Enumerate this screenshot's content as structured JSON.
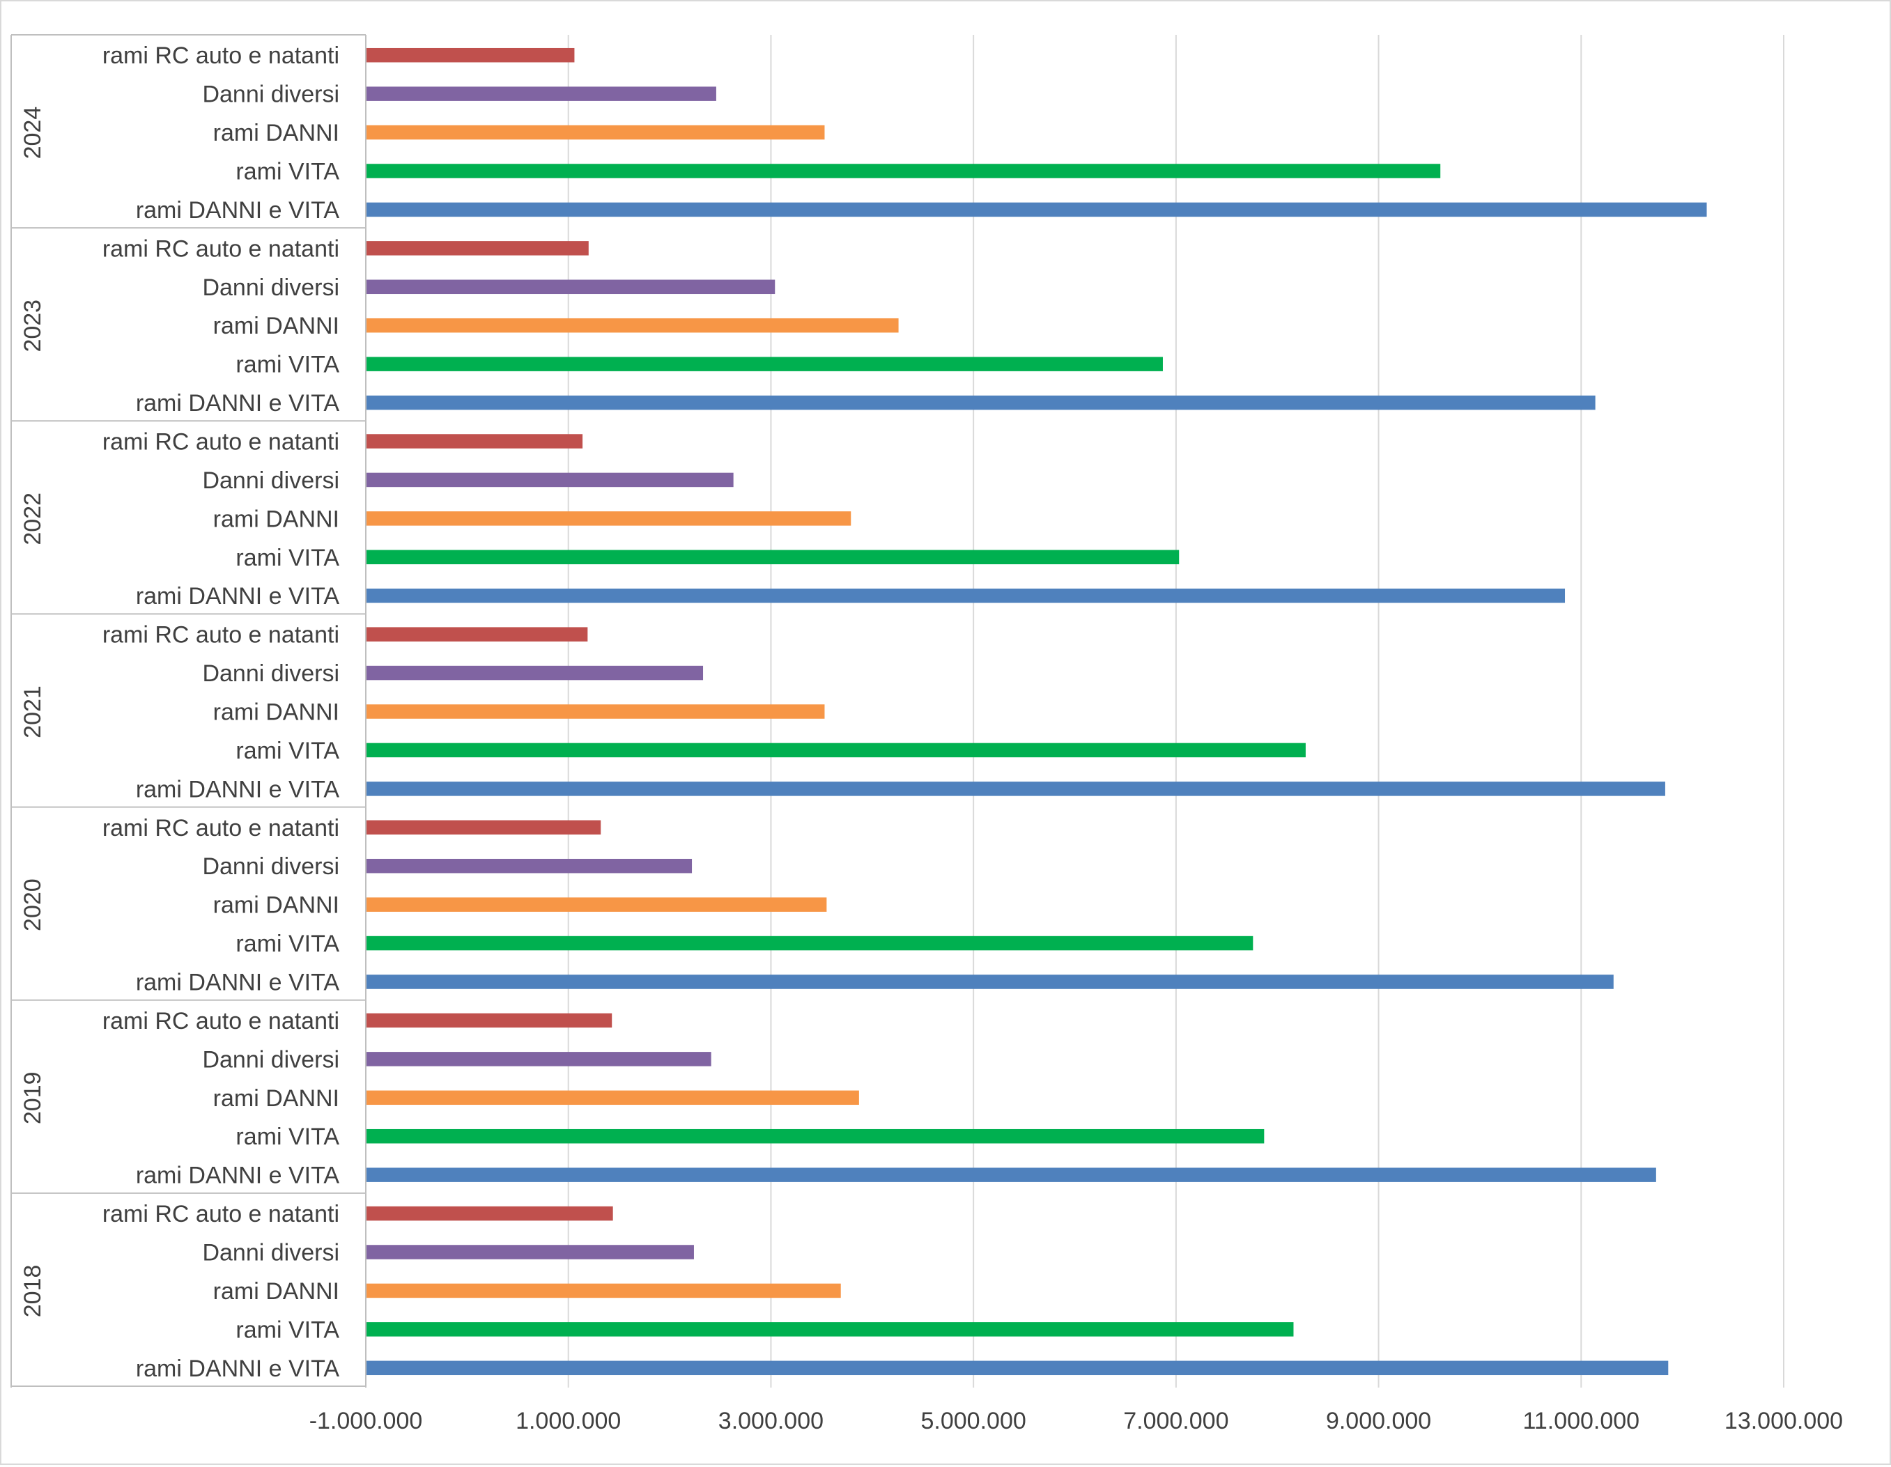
{
  "chart_data": {
    "type": "bar",
    "orientation": "horizontal",
    "title": "",
    "xlabel": "",
    "ylabel": "",
    "xlim": [
      -1000000,
      13000000
    ],
    "x_ticks": [
      -1000000,
      1000000,
      3000000,
      5000000,
      7000000,
      9000000,
      11000000,
      13000000
    ],
    "x_tick_labels": [
      "-1.000.000",
      "1.000.000",
      "3.000.000",
      "5.000.000",
      "7.000.000",
      "9.000.000",
      "11.000.000",
      "13.000.000"
    ],
    "grid": "vertical",
    "legend": "none",
    "colors": {
      "rami RC auto e natanti": "#c0504d",
      "Danni diversi": "#8064a2",
      "rami DANNI": "#f79646",
      "rami VITA": "#00b050",
      "rami DANNI e VITA": "#4f81bd"
    },
    "groups": [
      {
        "year": "2024",
        "bars": [
          {
            "label": "rami RC auto e natanti",
            "value": 1060000
          },
          {
            "label": "Danni diversi",
            "value": 2460000
          },
          {
            "label": "rami DANNI",
            "value": 3530000
          },
          {
            "label": "rami VITA",
            "value": 9610000
          },
          {
            "label": "rami DANNI e VITA",
            "value": 12240000
          }
        ]
      },
      {
        "year": "2023",
        "bars": [
          {
            "label": "rami RC auto e natanti",
            "value": 1200000
          },
          {
            "label": "Danni diversi",
            "value": 3040000
          },
          {
            "label": "rami DANNI",
            "value": 4260000
          },
          {
            "label": "rami VITA",
            "value": 6870000
          },
          {
            "label": "rami DANNI e VITA",
            "value": 11140000
          }
        ]
      },
      {
        "year": "2022",
        "bars": [
          {
            "label": "rami RC auto e natanti",
            "value": 1140000
          },
          {
            "label": "Danni diversi",
            "value": 2630000
          },
          {
            "label": "rami DANNI",
            "value": 3790000
          },
          {
            "label": "rami VITA",
            "value": 7030000
          },
          {
            "label": "rami DANNI e VITA",
            "value": 10840000
          }
        ]
      },
      {
        "year": "2021",
        "bars": [
          {
            "label": "rami RC auto e natanti",
            "value": 1190000
          },
          {
            "label": "Danni diversi",
            "value": 2330000
          },
          {
            "label": "rami DANNI",
            "value": 3530000
          },
          {
            "label": "rami VITA",
            "value": 8280000
          },
          {
            "label": "rami DANNI e VITA",
            "value": 11830000
          }
        ]
      },
      {
        "year": "2020",
        "bars": [
          {
            "label": "rami RC auto e natanti",
            "value": 1320000
          },
          {
            "label": "Danni diversi",
            "value": 2220000
          },
          {
            "label": "rami DANNI",
            "value": 3550000
          },
          {
            "label": "rami VITA",
            "value": 7760000
          },
          {
            "label": "rami DANNI e VITA",
            "value": 11320000
          }
        ]
      },
      {
        "year": "2019",
        "bars": [
          {
            "label": "rami RC auto e natanti",
            "value": 1430000
          },
          {
            "label": "Danni diversi",
            "value": 2410000
          },
          {
            "label": "rami DANNI",
            "value": 3870000
          },
          {
            "label": "rami VITA",
            "value": 7870000
          },
          {
            "label": "rami DANNI e VITA",
            "value": 11740000
          }
        ]
      },
      {
        "year": "2018",
        "bars": [
          {
            "label": "rami RC auto e natanti",
            "value": 1440000
          },
          {
            "label": "Danni diversi",
            "value": 2240000
          },
          {
            "label": "rami DANNI",
            "value": 3690000
          },
          {
            "label": "rami VITA",
            "value": 8160000
          },
          {
            "label": "rami DANNI e VITA",
            "value": 11860000
          }
        ]
      }
    ]
  }
}
